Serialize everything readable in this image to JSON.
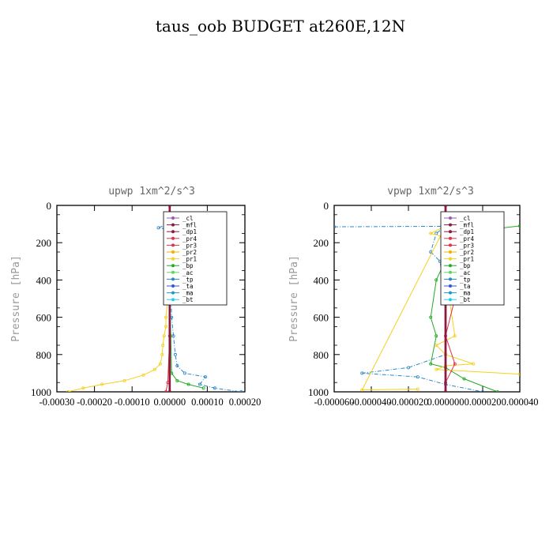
{
  "figure": {
    "title": "taus_oob  BUDGET at260E,12N"
  },
  "legend_order": [
    "_cl",
    "_mfl",
    "_dp1",
    "_pr4",
    "_pr3",
    "_pr2",
    "_pr1",
    "_bp",
    "_ac",
    "_tp",
    "_ta",
    "_ma",
    "_bt"
  ],
  "colors": {
    "_cl": "#9b59b6",
    "_mfl": "#8b1a3c",
    "_dp1": "#8b1a3c",
    "_pr4": "#e0304a",
    "_pr3": "#e0304a",
    "_pr2": "#f0b000",
    "_pr1": "#f5d020",
    "_bp": "#22aa22",
    "_ac": "#55dd55",
    "_tp": "#2a88c8",
    "_ta": "#3355dd",
    "_ma": "#1a99cc",
    "_bt": "#22ccee"
  },
  "chart_data": [
    {
      "type": "line",
      "title": "upwp   1xm^2/s^3",
      "ylabel": "Pressure [hPa]",
      "xlabel": "",
      "xlim": [
        -0.0003,
        0.0002
      ],
      "ylim": [
        1000,
        0
      ],
      "xticks": [
        -0.0003,
        -0.0002,
        -0.0001,
        0.0,
        0.0001,
        0.0002
      ],
      "xtick_labels": [
        "-0.00030",
        "-0.00020",
        "-0.00010",
        "0.00000",
        "0.00010",
        "0.00020"
      ],
      "yticks": [
        0,
        200,
        400,
        600,
        800,
        1000
      ],
      "ytick_labels": [
        "0",
        "200",
        "400",
        "600",
        "800",
        "1000"
      ],
      "legend": {
        "position": "top-right"
      },
      "series": [
        {
          "name": "_pr1",
          "points": [
            [
              5e-06,
              100
            ],
            [
              1e-05,
              120
            ],
            [
              0.0,
              150
            ],
            [
              -3e-06,
              300
            ],
            [
              -5e-06,
              500
            ],
            [
              -1e-05,
              600
            ],
            [
              -1e-05,
              650
            ],
            [
              -1.5e-05,
              700
            ],
            [
              -1.8e-05,
              750
            ],
            [
              -2e-05,
              800
            ],
            [
              -2.5e-05,
              850
            ],
            [
              -4e-05,
              880
            ],
            [
              -7e-05,
              910
            ],
            [
              -0.00012,
              940
            ],
            [
              -0.00018,
              960
            ],
            [
              -0.00023,
              980
            ],
            [
              -0.00027,
              1000
            ]
          ]
        },
        {
          "name": "_tp",
          "points": [
            [
              0.0,
              95
            ],
            [
              -1e-05,
              105
            ],
            [
              -3e-05,
              120
            ],
            [
              0.0,
              130
            ],
            [
              5e-06,
              200
            ],
            [
              3e-06,
              400
            ],
            [
              5e-06,
              600
            ],
            [
              1e-05,
              700
            ],
            [
              1.5e-05,
              800
            ],
            [
              2e-05,
              860
            ],
            [
              4e-05,
              900
            ],
            [
              9.5e-05,
              920
            ],
            [
              8e-05,
              960
            ],
            [
              0.00012,
              980
            ],
            [
              0.00019,
              1000
            ]
          ]
        },
        {
          "name": "_bp",
          "points": [
            [
              0.0,
              100
            ],
            [
              1.5e-05,
              110
            ],
            [
              0.0,
              130
            ],
            [
              0.0,
              500
            ],
            [
              3e-06,
              700
            ],
            [
              5e-06,
              900
            ],
            [
              2e-05,
              940
            ],
            [
              5e-05,
              960
            ],
            [
              9e-05,
              980
            ]
          ]
        },
        {
          "name": "_pr3",
          "points": [
            [
              0.0,
              100
            ],
            [
              5e-06,
              110
            ],
            [
              0.0,
              300
            ],
            [
              0.0,
              700
            ],
            [
              -5e-06,
              950
            ],
            [
              -1e-05,
              1000
            ]
          ]
        },
        {
          "name": "_cl",
          "points": [
            [
              0.0,
              0
            ],
            [
              0.0,
              1000
            ]
          ]
        },
        {
          "name": "_mfl",
          "points": [
            [
              0.0,
              0
            ],
            [
              0.0,
              1000
            ]
          ]
        }
      ]
    },
    {
      "type": "line",
      "title": "vpwp   1xm^2/s^3",
      "ylabel": "Pressure [hPa]",
      "xlabel": "",
      "xlim": [
        -6e-05,
        4e-05
      ],
      "ylim": [
        1000,
        0
      ],
      "xticks": [
        -6e-05,
        -4e-05,
        -2e-05,
        0.0,
        2e-05,
        4e-05
      ],
      "xtick_labels": [
        "-0.000060",
        "-0.000040",
        "-0.000020",
        "0.000000",
        "0.000020",
        "0.000040"
      ],
      "yticks": [
        0,
        200,
        400,
        600,
        800,
        1000
      ],
      "ytick_labels": [
        "0",
        "200",
        "400",
        "600",
        "800",
        "1000"
      ],
      "legend": {
        "position": "top-right"
      },
      "series": [
        {
          "name": "_tp",
          "points": [
            [
              -6e-05,
              115
            ],
            [
              0.0,
              112
            ],
            [
              -5e-06,
              150
            ],
            [
              -8e-06,
              250
            ],
            [
              -3e-06,
              300
            ],
            [
              0.0,
              500
            ],
            [
              0.0,
              800
            ],
            [
              -2e-05,
              870
            ],
            [
              -4.5e-05,
              900
            ],
            [
              -1.5e-05,
              920
            ],
            [
              0.0,
              960
            ],
            [
              2e-05,
              1000
            ]
          ]
        },
        {
          "name": "_bp",
          "points": [
            [
              4e-05,
              110
            ],
            [
              5e-06,
              150
            ],
            [
              2e-06,
              250
            ],
            [
              -5e-06,
              400
            ],
            [
              -8e-06,
              600
            ],
            [
              -5e-06,
              700
            ],
            [
              -8e-06,
              850
            ],
            [
              0.0,
              870
            ],
            [
              1e-05,
              930
            ],
            [
              2.8e-05,
              1000
            ]
          ]
        },
        {
          "name": "_pr1",
          "points": [
            [
              4e-05,
              905
            ],
            [
              -5e-06,
              880
            ],
            [
              0.0,
              860
            ],
            [
              1.5e-05,
              850
            ],
            [
              0.0,
              800
            ],
            [
              -5e-06,
              750
            ],
            [
              5e-06,
              700
            ],
            [
              2e-06,
              500
            ],
            [
              8e-06,
              350
            ],
            [
              4e-06,
              250
            ],
            [
              1e-05,
              200
            ],
            [
              -8e-06,
              150
            ],
            [
              0.0,
              110
            ],
            [
              -4.5e-05,
              990
            ],
            [
              -1.5e-05,
              985
            ]
          ]
        },
        {
          "name": "_pr3",
          "points": [
            [
              5e-06,
              300
            ],
            [
              1e-05,
              400
            ],
            [
              5e-06,
              500
            ],
            [
              0.0,
              700
            ],
            [
              5e-06,
              850
            ],
            [
              0.0,
              950
            ]
          ]
        },
        {
          "name": "_cl",
          "points": [
            [
              0.0,
              0
            ],
            [
              0.0,
              1000
            ]
          ]
        },
        {
          "name": "_mfl",
          "points": [
            [
              0.0,
              0
            ],
            [
              0.0,
              1000
            ]
          ]
        }
      ]
    }
  ]
}
